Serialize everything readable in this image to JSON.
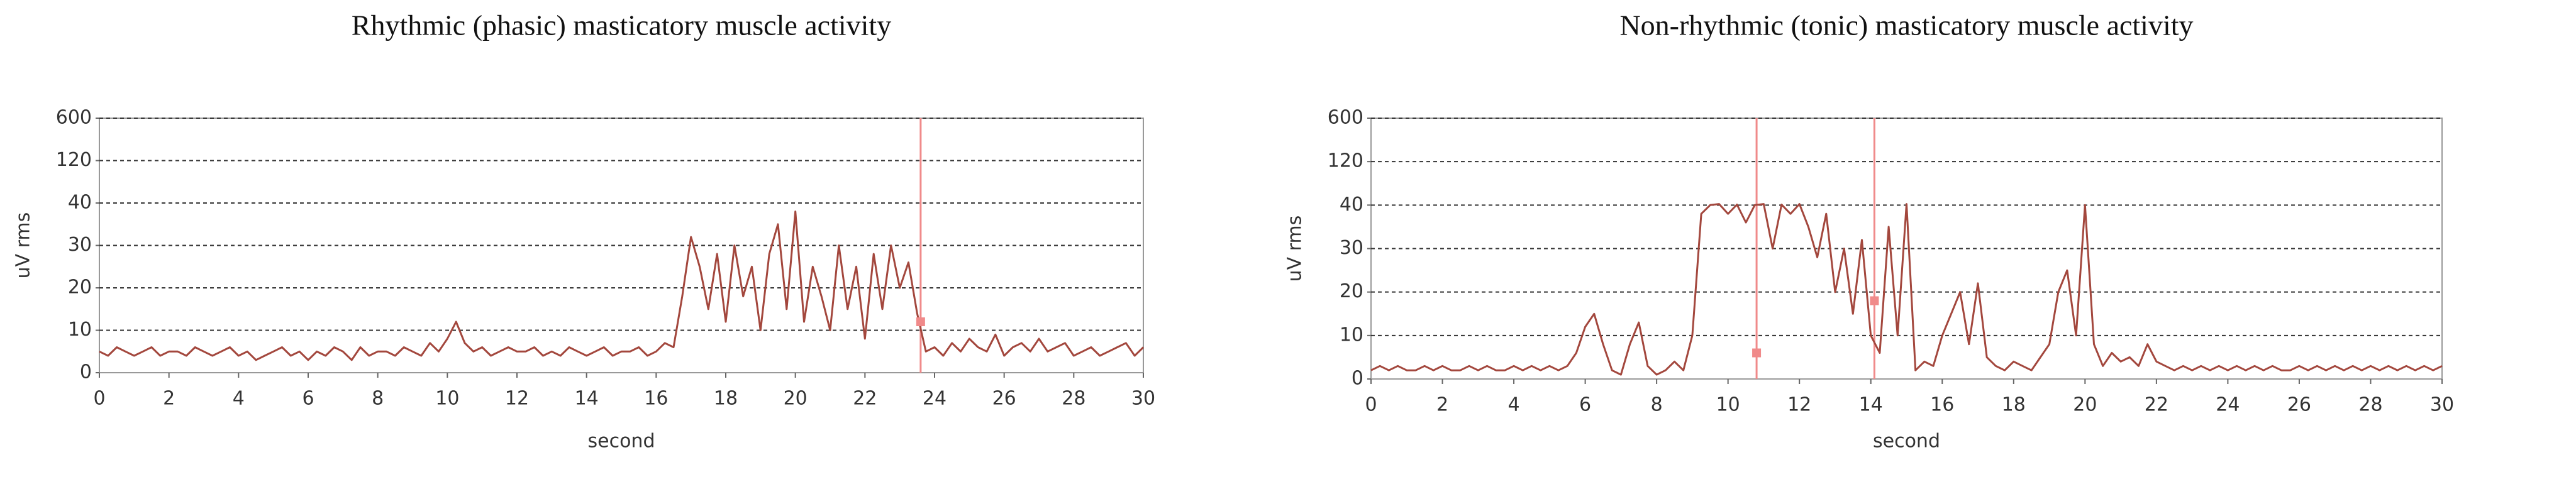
{
  "chart_data": [
    {
      "type": "line",
      "title": "Rhythmic (phasic) masticatory muscle activity",
      "xlabel": "second",
      "ylabel": "uV rms",
      "x": [
        0,
        0.25,
        0.5,
        0.75,
        1,
        1.25,
        1.5,
        1.75,
        2,
        2.25,
        2.5,
        2.75,
        3,
        3.25,
        3.5,
        3.75,
        4,
        4.25,
        4.5,
        4.75,
        5,
        5.25,
        5.5,
        5.75,
        6,
        6.25,
        6.5,
        6.75,
        7,
        7.25,
        7.5,
        7.75,
        8,
        8.25,
        8.5,
        8.75,
        9,
        9.25,
        9.5,
        9.75,
        10,
        10.25,
        10.5,
        10.75,
        11,
        11.25,
        11.5,
        11.75,
        12,
        12.25,
        12.5,
        12.75,
        13,
        13.25,
        13.5,
        13.75,
        14,
        14.25,
        14.5,
        14.75,
        15,
        15.25,
        15.5,
        15.75,
        16,
        16.25,
        16.5,
        16.75,
        17,
        17.25,
        17.5,
        17.75,
        18,
        18.25,
        18.5,
        18.75,
        19,
        19.25,
        19.5,
        19.75,
        20,
        20.25,
        20.5,
        20.75,
        21,
        21.25,
        21.5,
        21.75,
        22,
        22.25,
        22.5,
        22.75,
        23,
        23.25,
        23.5,
        23.75,
        24,
        24.25,
        24.5,
        24.75,
        25,
        25.25,
        25.5,
        25.75,
        26,
        26.25,
        26.5,
        26.75,
        27,
        27.25,
        27.5,
        27.75,
        28,
        28.25,
        28.5,
        28.75,
        29,
        29.25,
        29.5,
        29.75,
        30
      ],
      "values": [
        5,
        4,
        6,
        5,
        4,
        5,
        6,
        4,
        5,
        5,
        4,
        6,
        5,
        4,
        5,
        6,
        4,
        5,
        3,
        4,
        5,
        6,
        4,
        5,
        3,
        5,
        4,
        6,
        5,
        3,
        6,
        4,
        5,
        5,
        4,
        6,
        5,
        4,
        7,
        5,
        8,
        12,
        7,
        5,
        6,
        4,
        5,
        6,
        5,
        5,
        6,
        4,
        5,
        4,
        6,
        5,
        4,
        5,
        6,
        4,
        5,
        5,
        6,
        4,
        5,
        7,
        6,
        18,
        32,
        25,
        15,
        28,
        12,
        30,
        18,
        25,
        10,
        28,
        35,
        15,
        38,
        12,
        25,
        18,
        10,
        30,
        15,
        25,
        8,
        28,
        15,
        30,
        20,
        26,
        14,
        5,
        6,
        4,
        7,
        5,
        8,
        6,
        5,
        9,
        4,
        6,
        7,
        5,
        8,
        5,
        6,
        7,
        4,
        5,
        6,
        4,
        5,
        6,
        7,
        4,
        6
      ],
      "color": "#a3473d",
      "xlim": [
        0,
        30
      ],
      "ylim": [
        0,
        600
      ],
      "xticks": [
        0,
        2,
        4,
        6,
        8,
        10,
        12,
        14,
        16,
        18,
        20,
        22,
        24,
        26,
        28,
        30
      ],
      "yticks": [
        0,
        10,
        20,
        30,
        40,
        120,
        600
      ],
      "yscale": "piecewise",
      "grid": true,
      "marker_color": "#f08a8a",
      "markers": [
        {
          "x": 23.6,
          "y": 12
        }
      ]
    },
    {
      "type": "line",
      "title": "Non-rhythmic (tonic) masticatory muscle activity",
      "xlabel": "second",
      "ylabel": "uV rms",
      "x": [
        0,
        0.25,
        0.5,
        0.75,
        1,
        1.25,
        1.5,
        1.75,
        2,
        2.25,
        2.5,
        2.75,
        3,
        3.25,
        3.5,
        3.75,
        4,
        4.25,
        4.5,
        4.75,
        5,
        5.25,
        5.5,
        5.75,
        6,
        6.25,
        6.5,
        6.75,
        7,
        7.25,
        7.5,
        7.75,
        8,
        8.25,
        8.5,
        8.75,
        9,
        9.25,
        9.5,
        9.75,
        10,
        10.25,
        10.5,
        10.75,
        11,
        11.25,
        11.5,
        11.75,
        12,
        12.25,
        12.5,
        12.75,
        13,
        13.25,
        13.5,
        13.75,
        14,
        14.25,
        14.5,
        14.75,
        15,
        15.25,
        15.5,
        15.75,
        16,
        16.25,
        16.5,
        16.75,
        17,
        17.25,
        17.5,
        17.75,
        18,
        18.25,
        18.5,
        18.75,
        19,
        19.25,
        19.5,
        19.75,
        20,
        20.25,
        20.5,
        20.75,
        21,
        21.25,
        21.5,
        21.75,
        22,
        22.25,
        22.5,
        22.75,
        23,
        23.25,
        23.5,
        23.75,
        24,
        24.25,
        24.5,
        24.75,
        25,
        25.25,
        25.5,
        25.75,
        26,
        26.25,
        26.5,
        26.75,
        27,
        27.25,
        27.5,
        27.75,
        28,
        28.25,
        28.5,
        28.75,
        29,
        29.25,
        29.5,
        29.75,
        30
      ],
      "values": [
        2,
        3,
        2,
        3,
        2,
        2,
        3,
        2,
        3,
        2,
        2,
        3,
        2,
        3,
        2,
        2,
        3,
        2,
        3,
        2,
        3,
        2,
        3,
        6,
        12,
        15,
        8,
        2,
        1,
        8,
        13,
        3,
        1,
        2,
        4,
        2,
        10,
        38,
        40,
        42,
        38,
        41,
        36,
        40,
        42,
        30,
        41,
        38,
        42,
        35,
        28,
        38,
        20,
        30,
        15,
        32,
        10,
        6,
        35,
        10,
        42,
        2,
        4,
        3,
        10,
        15,
        20,
        8,
        22,
        5,
        3,
        2,
        4,
        3,
        2,
        5,
        8,
        20,
        25,
        10,
        40,
        8,
        3,
        6,
        4,
        5,
        3,
        8,
        4,
        3,
        2,
        3,
        2,
        3,
        2,
        3,
        2,
        3,
        2,
        3,
        2,
        3,
        2,
        2,
        3,
        2,
        3,
        2,
        3,
        2,
        3,
        2,
        3,
        2,
        3,
        2,
        3,
        2,
        3,
        2,
        3
      ],
      "color": "#a3473d",
      "xlim": [
        0,
        30
      ],
      "ylim": [
        0,
        600
      ],
      "xticks": [
        0,
        2,
        4,
        6,
        8,
        10,
        12,
        14,
        16,
        18,
        20,
        22,
        24,
        26,
        28,
        30
      ],
      "yticks": [
        0,
        10,
        20,
        30,
        40,
        120,
        600
      ],
      "yscale": "piecewise",
      "grid": true,
      "marker_color": "#f08a8a",
      "markers": [
        {
          "x": 10.8,
          "y": 6
        },
        {
          "x": 14.1,
          "y": 18
        }
      ]
    }
  ]
}
